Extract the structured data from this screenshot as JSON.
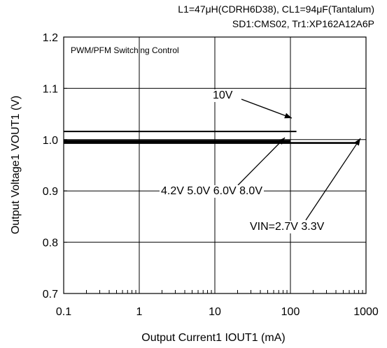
{
  "notes": {
    "line1": "L1=47μH(CDRH6D38), CL1=94μF(Tantalum)",
    "line2": "SD1:CMS02, Tr1:XP162A12A6P"
  },
  "plot_caption": "PWM/PFM Switching Control",
  "annotations": {
    "v10": "10V",
    "mid_group": "4.2V 5.0V 6.0V 8.0V",
    "vin_group": "VIN=2.7V 3.3V"
  },
  "chart_data": {
    "type": "line",
    "xlabel": "Output Current1  IOUT1 (mA)",
    "ylabel": "Output Voltage1  VOUT1 (V)",
    "x_scale": "log",
    "xlim": [
      0.1,
      1000
    ],
    "ylim": [
      0.7,
      1.2
    ],
    "x_ticks": [
      {
        "value": 0.1,
        "label": "0.1"
      },
      {
        "value": 1,
        "label": "1"
      },
      {
        "value": 10,
        "label": "10"
      },
      {
        "value": 100,
        "label": "100"
      },
      {
        "value": 1000,
        "label": "1000"
      }
    ],
    "y_ticks": [
      {
        "value": 0.7,
        "label": "0.7"
      },
      {
        "value": 0.8,
        "label": "0.8"
      },
      {
        "value": 0.9,
        "label": "0.9"
      },
      {
        "value": 1.0,
        "label": "1.0"
      },
      {
        "value": 1.1,
        "label": "1.1"
      },
      {
        "value": 1.2,
        "label": "1.2"
      }
    ],
    "grid": true,
    "series": [
      {
        "name": "10V",
        "x": [
          0.1,
          1,
          10,
          100,
          120
        ],
        "y": [
          1.016,
          1.016,
          1.016,
          1.016,
          1.016
        ]
      },
      {
        "name": "4.2V",
        "x": [
          0.1,
          1,
          10,
          100
        ],
        "y": [
          0.995,
          0.995,
          0.995,
          0.995
        ]
      },
      {
        "name": "5.0V",
        "x": [
          0.1,
          1,
          10,
          100
        ],
        "y": [
          0.996,
          0.996,
          0.996,
          0.996
        ]
      },
      {
        "name": "6.0V",
        "x": [
          0.1,
          1,
          10,
          100
        ],
        "y": [
          0.997,
          0.997,
          0.997,
          0.997
        ]
      },
      {
        "name": "8.0V",
        "x": [
          0.1,
          1,
          10,
          100
        ],
        "y": [
          0.998,
          0.998,
          0.998,
          0.998
        ]
      },
      {
        "name": "VIN=2.7V",
        "x": [
          0.1,
          1,
          10,
          100,
          800
        ],
        "y": [
          0.993,
          0.993,
          0.993,
          0.993,
          0.993
        ]
      },
      {
        "name": "3.3V",
        "x": [
          0.1,
          1,
          10,
          100,
          800
        ],
        "y": [
          0.994,
          0.994,
          0.994,
          0.994,
          0.994
        ]
      }
    ]
  }
}
